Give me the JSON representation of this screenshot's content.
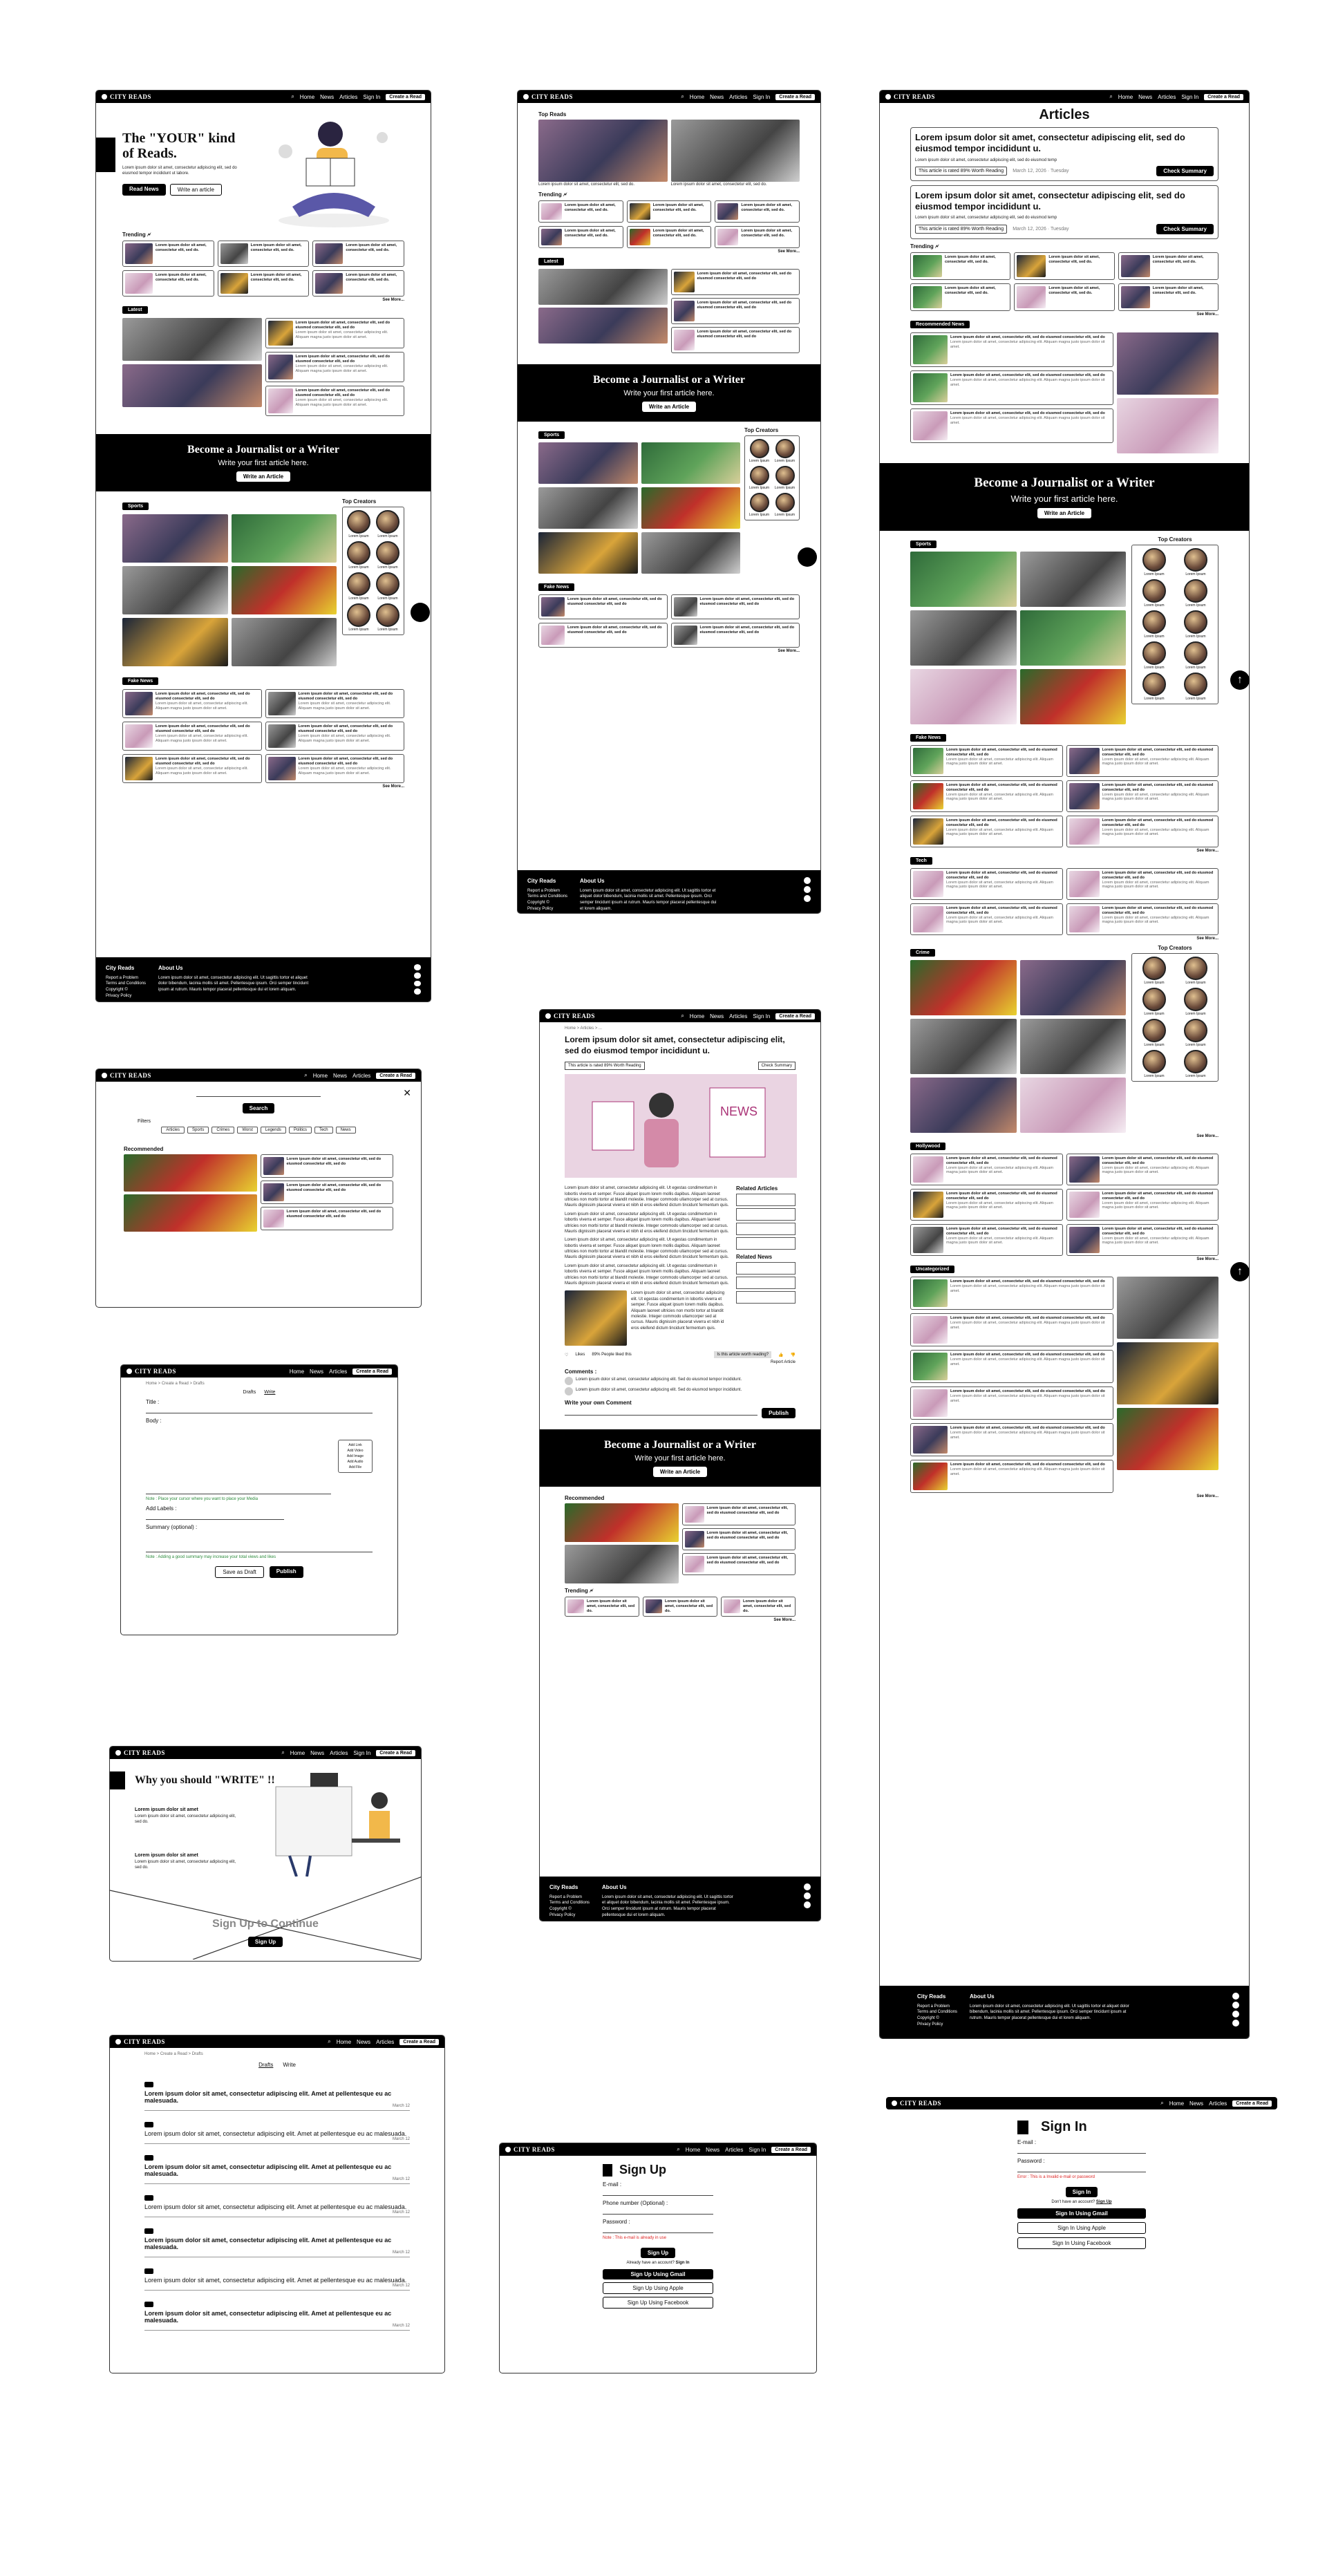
{
  "nav": {
    "logo": "CITY READS",
    "home": "Home",
    "news": "News",
    "articles": "Articles",
    "signin": "Sign In",
    "cta": "Create a Read"
  },
  "home": {
    "hero_title": "The \"YOUR\" kind of Reads.",
    "hero_text": "Lorem ipsum dolor sit amet, consectetur adipiscing elit, sed do eiusmod tempor incididunt ut labore.",
    "read_news": "Read News",
    "write_article": "Write an article"
  },
  "sections": {
    "trending": "Trending 🗲",
    "latest": "Latest",
    "sports": "Sports",
    "top_creators": "Top Creators",
    "fake_news": "Fake News",
    "see_more": "See More...",
    "top_reads": "Top Reads",
    "recommended": "Recommended",
    "recommended_news": "Recommended News",
    "tech": "Tech",
    "crime": "Crime",
    "hollywood": "Hollywood",
    "uncategorized": "Uncategorized",
    "related_articles": "Related Articles",
    "related_news": "Related News"
  },
  "card": {
    "title": "Lorem ipsum dolor sit amet, consectetur elit, sed do eiusmod consectetur elit, sed do",
    "short": "Lorem ipsum dolor sit amet, consectetur elit, sed do.",
    "sub": "Lorem ipsum dolor sit amet, consectetur adipiscing elit. Aliquam magna justo ipsum dolor sit amet.",
    "tag": "Category"
  },
  "creator": "Lorem Ipsum",
  "journalist": {
    "title": "Become a Journalist or a Writer",
    "sub": "Write your first article here.",
    "btn": "Write an Article"
  },
  "footer": {
    "brand": "City Reads",
    "links": [
      "Report a Problem",
      "Terms and Conditions",
      "Copyright ©",
      "Privacy Policy"
    ],
    "about": "About Us",
    "about_text": "Lorem ipsum dolor sit amet, consectetur adipiscing elit. Ut sagittis tortor et aliquet dolor bibendum, lacinia mollis sit amet. Pellentesque ipsum. Orci semper tincidunt ipsum at rutrum. Mauris tempor placerat pellentesque dui et lorem aliquam."
  },
  "articles_page": {
    "title": "Articles",
    "headline": "Lorem ipsum dolor sit amet, consectetur adipiscing elit, sed do eiusmod tempor incididunt u.",
    "sub": "Lorem ipsum dolor sit amet, consectetur adipiscing elit, sed do eiusmod temp",
    "rated": "This article is rated 89% Worth Reading",
    "date": "March 12, 2026 · Tuesday",
    "check": "Check Summary"
  },
  "search": {
    "btn": "Search",
    "filters": "Filters",
    "chips": [
      "Articles",
      "Sports",
      "Crimes",
      "Worst",
      "Legends",
      "Politics",
      "Tech",
      "News"
    ]
  },
  "editor": {
    "crumb": "Home > Create a Read > Drafts",
    "tab1": "Drafts",
    "tab2": "Write",
    "title": "Title :",
    "body": "Body :",
    "tools": [
      "Add Link",
      "Add Video",
      "Add Image",
      "Add Audio",
      "Add File"
    ],
    "note1": "Note : Place your cursor where you want to place your Media",
    "url": "Add Labels :",
    "summary": "Summary (optional) :",
    "note2": "Note : Adding a good summary may increase your total views and likes",
    "draft": "Save as Draft",
    "publish": "Publish"
  },
  "detail": {
    "crumb": "Home > Articles > ...",
    "headline": "Lorem ipsum dolor sit amet, consectetur adipiscing elit, sed do eiusmod tempor incididunt u.",
    "rated": "This article is rated 89% Worth Reading",
    "check": "Check Summary",
    "para": "Lorem ipsum dolor sit amet, consectetur adipiscing elit. Ut egestas condimentum in lobortis viverra et semper. Fusce aliquet ipsum lorem mollis dapibus. Aliquam laoreet ultricies non morbi tortor at blandit molestie. Integer commodo ullamcorper sed at cursus. Mauris dignissim placerat viverra et nibh id eros eleifend dictum tincidunt fermentum quis.",
    "likes": "Likes",
    "worth": "Is this article worth reading?",
    "people": "89% People liked this",
    "report": "Report Article",
    "comments": "Comments :",
    "comment": "Lorem ipsum dolor sit amet, consectetur adipiscing elit. Sed do eiusmod tempor incididunt.",
    "write_comment": "Write your own Comment",
    "publish": "Publish"
  },
  "why": {
    "title": "Why you should \"WRITE\" !!",
    "item": "Lorem ipsum dolor sit amet",
    "desc": "Lorem ipsum dolor sit amet, consectetur adipiscing elit, sed do.",
    "signup": "Sign Up to Continue",
    "btn": "Sign Up"
  },
  "drafts": {
    "crumb": "Home > Create a Read > Drafts",
    "tab1": "Drafts",
    "tab2": "Write",
    "item": "Lorem ipsum dolor sit amet, consectetur adipiscing elit. Amet at pellentesque eu ac malesuada.",
    "date": "March 12"
  },
  "signup": {
    "title": "Sign Up",
    "email": "E-mail :",
    "phone": "Phone number (Optional) :",
    "password": "Password :",
    "err": "Note : This e-mail is already in use",
    "btn": "Sign Up",
    "have": "Already have an account?",
    "signin": "Sign In",
    "gmail": "Sign Up Using Gmail",
    "apple": "Sign Up Using Apple",
    "facebook": "Sign Up Using Facebook"
  },
  "signin": {
    "title": "Sign In",
    "email": "E-mail :",
    "password": "Password :",
    "err": "Error : This is a Invalid e-mail or password",
    "btn": "Sign In",
    "none": "Don't have an account?",
    "signup": "Sign Up",
    "gmail": "Sign In Using Gmail",
    "apple": "Sign In Using Apple",
    "facebook": "Sign In Using Facebook"
  }
}
